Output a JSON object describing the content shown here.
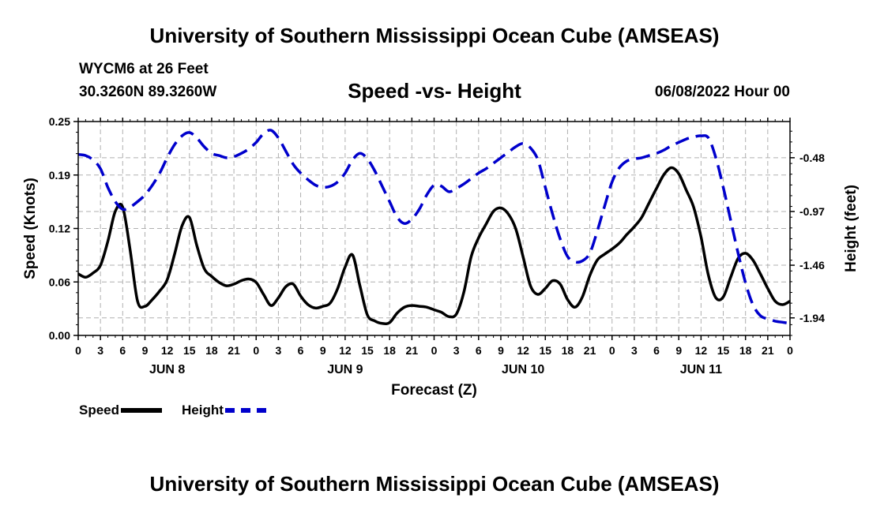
{
  "header": {
    "main_title": "University of Southern Mississippi Ocean Cube (AMSEAS)",
    "station": "WYCM6 at 26 Feet",
    "coords": "30.3260N  89.3260W",
    "subtitle": "Speed -vs- Height",
    "datetime": "06/08/2022 Hour 00"
  },
  "footer": {
    "title": "University of Southern Mississippi Ocean Cube (AMSEAS)"
  },
  "legend": {
    "speed_label": "Speed",
    "height_label": "Height"
  },
  "colors": {
    "speed": "#000000",
    "height": "#0000cc",
    "grid": "#b0b0b0"
  },
  "chart_data": {
    "type": "line",
    "title": "Speed -vs- Height",
    "xlabel": "Forecast (Z)",
    "ylabel": "Speed (Knots)",
    "y2label": "Height (feet)",
    "xlim_hours": [
      0,
      96
    ],
    "ylim": [
      0,
      0.25
    ],
    "y2lim": [
      -2.1,
      -0.15
    ],
    "yticks": [
      "0.00",
      "0.06",
      "0.12",
      "0.19",
      "0.25"
    ],
    "y2ticks": [
      "-0.48",
      "-0.97",
      "-1.46",
      "-1.94"
    ],
    "y2tick_values": [
      -0.48,
      -0.97,
      -1.46,
      -1.94
    ],
    "xtick_labels": [
      "0",
      "3",
      "6",
      "9",
      "12",
      "15",
      "18",
      "21",
      "0",
      "3",
      "6",
      "9",
      "12",
      "15",
      "18",
      "21",
      "0",
      "3",
      "6",
      "9",
      "12",
      "15",
      "18",
      "21",
      "0",
      "3",
      "6",
      "9",
      "12",
      "15",
      "18",
      "21",
      "0"
    ],
    "date_labels": [
      {
        "label": "JUN 8",
        "hour": 12
      },
      {
        "label": "JUN 9",
        "hour": 36
      },
      {
        "label": "JUN 10",
        "hour": 60
      },
      {
        "label": "JUN 11",
        "hour": 84
      }
    ],
    "series": [
      {
        "name": "Speed",
        "axis": "left",
        "style": "solid",
        "x": [
          0,
          1,
          2,
          3,
          4,
          5,
          6,
          7,
          8,
          9,
          10,
          11,
          12,
          13,
          14,
          15,
          16,
          17,
          18,
          19,
          20,
          21,
          22,
          23,
          24,
          25,
          26,
          27,
          28,
          29,
          30,
          31,
          32,
          33,
          34,
          35,
          36,
          37,
          38,
          39,
          40,
          41,
          42,
          43,
          44,
          45,
          46,
          47,
          48,
          49,
          50,
          51,
          52,
          53,
          54,
          55,
          56,
          57,
          58,
          59,
          60,
          61,
          62,
          63,
          64,
          65,
          66,
          67,
          68,
          69,
          70,
          71,
          72,
          73,
          74,
          75,
          76,
          77,
          78,
          79,
          80,
          81,
          82,
          83,
          84,
          85,
          86,
          87,
          88,
          89,
          90,
          91,
          92,
          93,
          94,
          95,
          96
        ],
        "values": [
          0.072,
          0.068,
          0.073,
          0.082,
          0.11,
          0.145,
          0.15,
          0.1,
          0.04,
          0.034,
          0.042,
          0.052,
          0.065,
          0.095,
          0.128,
          0.138,
          0.105,
          0.078,
          0.069,
          0.062,
          0.058,
          0.06,
          0.064,
          0.066,
          0.062,
          0.048,
          0.035,
          0.044,
          0.057,
          0.06,
          0.046,
          0.036,
          0.032,
          0.034,
          0.038,
          0.055,
          0.08,
          0.094,
          0.058,
          0.024,
          0.017,
          0.014,
          0.015,
          0.026,
          0.033,
          0.035,
          0.034,
          0.033,
          0.03,
          0.027,
          0.022,
          0.025,
          0.05,
          0.092,
          0.114,
          0.13,
          0.145,
          0.149,
          0.142,
          0.125,
          0.092,
          0.058,
          0.048,
          0.055,
          0.064,
          0.06,
          0.042,
          0.033,
          0.045,
          0.07,
          0.088,
          0.095,
          0.101,
          0.108,
          0.118,
          0.127,
          0.138,
          0.155,
          0.172,
          0.188,
          0.196,
          0.189,
          0.17,
          0.15,
          0.115,
          0.07,
          0.044,
          0.045,
          0.068,
          0.09,
          0.096,
          0.088,
          0.072,
          0.055,
          0.04,
          0.036,
          0.04
        ]
      },
      {
        "name": "Height",
        "axis": "right",
        "style": "dashed",
        "x": [
          0,
          1,
          2,
          3,
          4,
          5,
          6,
          7,
          8,
          9,
          10,
          11,
          12,
          13,
          14,
          15,
          16,
          17,
          18,
          19,
          20,
          21,
          22,
          23,
          24,
          25,
          26,
          27,
          28,
          29,
          30,
          31,
          32,
          33,
          34,
          35,
          36,
          37,
          38,
          39,
          40,
          41,
          42,
          43,
          44,
          45,
          46,
          47,
          48,
          49,
          50,
          51,
          52,
          53,
          54,
          55,
          56,
          57,
          58,
          59,
          60,
          61,
          62,
          63,
          64,
          65,
          66,
          67,
          68,
          69,
          70,
          71,
          72,
          73,
          74,
          75,
          76,
          77,
          78,
          79,
          80,
          81,
          82,
          83,
          84,
          85,
          86,
          87,
          88,
          89,
          90,
          91,
          92,
          93,
          94,
          95,
          96
        ],
        "values": [
          -0.45,
          -0.46,
          -0.5,
          -0.58,
          -0.75,
          -0.88,
          -0.95,
          -0.93,
          -0.88,
          -0.82,
          -0.73,
          -0.62,
          -0.48,
          -0.36,
          -0.28,
          -0.25,
          -0.3,
          -0.38,
          -0.44,
          -0.46,
          -0.48,
          -0.47,
          -0.44,
          -0.4,
          -0.34,
          -0.26,
          -0.23,
          -0.3,
          -0.42,
          -0.54,
          -0.62,
          -0.68,
          -0.73,
          -0.75,
          -0.74,
          -0.7,
          -0.62,
          -0.5,
          -0.44,
          -0.49,
          -0.6,
          -0.74,
          -0.88,
          -1.02,
          -1.08,
          -1.04,
          -0.95,
          -0.82,
          -0.73,
          -0.74,
          -0.79,
          -0.76,
          -0.72,
          -0.67,
          -0.62,
          -0.58,
          -0.53,
          -0.48,
          -0.43,
          -0.38,
          -0.35,
          -0.39,
          -0.5,
          -0.75,
          -1.0,
          -1.22,
          -1.38,
          -1.43,
          -1.42,
          -1.35,
          -1.15,
          -0.92,
          -0.7,
          -0.57,
          -0.51,
          -0.49,
          -0.48,
          -0.46,
          -0.44,
          -0.41,
          -0.37,
          -0.34,
          -0.31,
          -0.29,
          -0.28,
          -0.3,
          -0.48,
          -0.75,
          -1.05,
          -1.35,
          -1.62,
          -1.82,
          -1.92,
          -1.95,
          -1.97,
          -1.98,
          -1.99
        ]
      }
    ]
  }
}
